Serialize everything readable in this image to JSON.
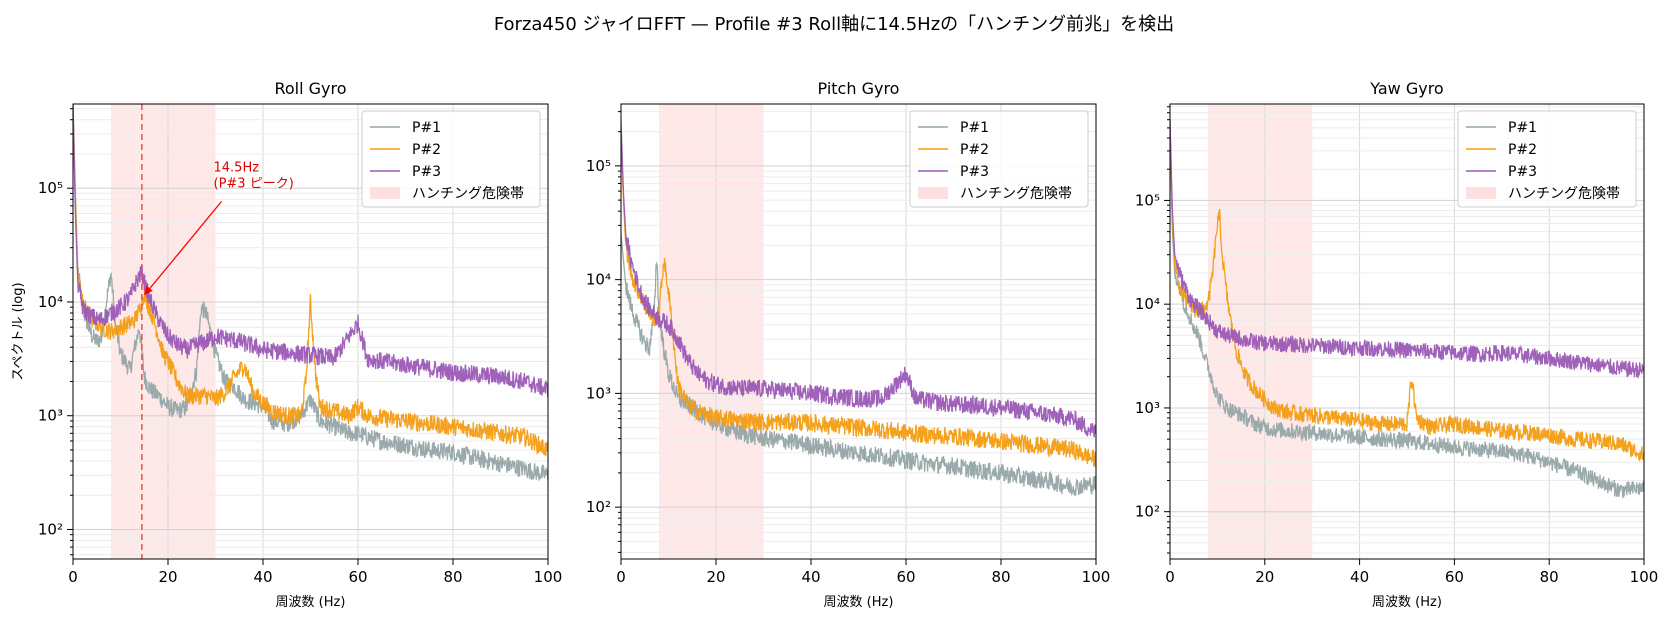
{
  "figure": {
    "title": "Forza450 ジャイロFFT — Profile #3 Roll軸に14.5Hzの「ハンチング前兆」を検出"
  },
  "colors": {
    "P#1": "#95a5a6",
    "P#2": "#f39c12",
    "P#3": "#9b59b6",
    "band": "#ffcccc",
    "marker": "#e74c3c",
    "annotation": "#e00000"
  },
  "chart_data": [
    {
      "type": "line",
      "title": "Roll Gyro",
      "xlabel": "周波数 (Hz)",
      "ylabel": "スペクトル (log)",
      "xlim": [
        0,
        100
      ],
      "ylim": [
        55,
        550000
      ],
      "yscale": "log",
      "x_ticks": [
        0,
        20,
        40,
        60,
        80,
        100
      ],
      "y_ticks": [
        100,
        1000,
        10000,
        100000
      ],
      "y_tick_labels": [
        "10²",
        "10³",
        "10⁴",
        "10⁵"
      ],
      "grid": true,
      "legend": "upper-right",
      "legend_entries": [
        "P#1",
        "P#2",
        "P#3",
        "ハンチング危険帯"
      ],
      "band": {
        "label": "ハンチング危険帯",
        "x": [
          8,
          30
        ]
      },
      "vline": 14.5,
      "annotation": {
        "lines": [
          "14.5Hz",
          "(P#3 ピーク)"
        ],
        "xy": [
          14.5,
          11000
        ],
        "text_xy": [
          30,
          110000
        ]
      },
      "series": [
        {
          "name": "P#1",
          "x": [
            0,
            0.5,
            1,
            2,
            3,
            4,
            5,
            6,
            7,
            8,
            9,
            10,
            11,
            12,
            13,
            14,
            15,
            16,
            17,
            18,
            20,
            22,
            24,
            26,
            27,
            28,
            30,
            32,
            34,
            36,
            38,
            40,
            42,
            45,
            48,
            50,
            52,
            55,
            58,
            60,
            62,
            65,
            70,
            75,
            80,
            85,
            90,
            95,
            100
          ],
          "y": [
            600000,
            90000,
            20000,
            9000,
            6500,
            5000,
            4500,
            4800,
            10000,
            18000,
            6000,
            3500,
            3000,
            2500,
            4000,
            6000,
            2200,
            1800,
            1600,
            1500,
            1200,
            1100,
            1200,
            2500,
            9000,
            8000,
            3500,
            2000,
            1800,
            1400,
            1300,
            1200,
            900,
            850,
            1000,
            1400,
            900,
            800,
            700,
            700,
            650,
            600,
            550,
            500,
            480,
            420,
            380,
            340,
            300
          ]
        },
        {
          "name": "P#2",
          "x": [
            0,
            0.5,
            1,
            2,
            3,
            4,
            5,
            6,
            8,
            10,
            12,
            13,
            14,
            15,
            16,
            17,
            18,
            19,
            20,
            22,
            24,
            26,
            28,
            30,
            32,
            34,
            36,
            38,
            40,
            42,
            45,
            48,
            49,
            50,
            51,
            52,
            55,
            58,
            60,
            62,
            65,
            70,
            75,
            80,
            85,
            90,
            95,
            100
          ],
          "y": [
            500000,
            80000,
            18000,
            10000,
            8000,
            7000,
            6500,
            6000,
            5500,
            6000,
            6500,
            7000,
            8500,
            12000,
            9000,
            7000,
            5000,
            3500,
            3000,
            2000,
            1500,
            1500,
            1500,
            1400,
            1600,
            2200,
            2800,
            1600,
            1300,
            1100,
            1000,
            1000,
            2000,
            10000,
            2500,
            1200,
            1100,
            1000,
            1200,
            1000,
            950,
            900,
            850,
            800,
            750,
            700,
            650,
            500
          ]
        },
        {
          "name": "P#3",
          "x": [
            0,
            0.5,
            1,
            2,
            3,
            4,
            5,
            6,
            8,
            10,
            12,
            13,
            14,
            14.5,
            15,
            16,
            18,
            20,
            22,
            24,
            26,
            28,
            30,
            35,
            40,
            45,
            50,
            55,
            60,
            62,
            65,
            70,
            75,
            80,
            85,
            90,
            95,
            100
          ],
          "y": [
            550000,
            60000,
            15000,
            9000,
            8000,
            7500,
            7000,
            7000,
            8000,
            9000,
            11000,
            14000,
            17000,
            18000,
            15000,
            11000,
            7000,
            5000,
            4200,
            3800,
            4200,
            4500,
            5000,
            4500,
            3800,
            3600,
            3400,
            3200,
            6500,
            3200,
            3000,
            2800,
            2600,
            2400,
            2300,
            2200,
            2000,
            1700
          ]
        }
      ]
    },
    {
      "type": "line",
      "title": "Pitch Gyro",
      "xlabel": "周波数 (Hz)",
      "ylabel": "",
      "xlim": [
        0,
        100
      ],
      "ylim": [
        35,
        350000
      ],
      "yscale": "log",
      "x_ticks": [
        0,
        20,
        40,
        60,
        80,
        100
      ],
      "y_ticks": [
        100,
        1000,
        10000,
        100000
      ],
      "y_tick_labels": [
        "10²",
        "10³",
        "10⁴",
        "10⁵"
      ],
      "grid": true,
      "legend": "upper-right",
      "legend_entries": [
        "P#1",
        "P#2",
        "P#3",
        "ハンチング危険帯"
      ],
      "band": {
        "label": "ハンチング危険帯",
        "x": [
          8,
          30
        ]
      },
      "series": [
        {
          "name": "P#1",
          "x": [
            0,
            0.5,
            1,
            2,
            3,
            4,
            5,
            6,
            7,
            7.5,
            8,
            9,
            10,
            12,
            14,
            16,
            18,
            20,
            22,
            25,
            30,
            35,
            40,
            45,
            50,
            55,
            60,
            65,
            70,
            75,
            80,
            85,
            90,
            95,
            100
          ],
          "y": [
            25000,
            15000,
            9000,
            6000,
            4500,
            3500,
            2800,
            2500,
            5000,
            17000,
            5000,
            2500,
            1500,
            900,
            800,
            700,
            600,
            550,
            500,
            450,
            400,
            380,
            350,
            320,
            300,
            280,
            260,
            240,
            230,
            210,
            200,
            180,
            170,
            150,
            160
          ]
        },
        {
          "name": "P#2",
          "x": [
            0,
            0.5,
            1,
            2,
            3,
            4,
            5,
            6,
            7,
            8,
            9,
            10,
            11,
            12,
            14,
            16,
            18,
            20,
            22,
            25,
            30,
            35,
            40,
            45,
            50,
            55,
            60,
            65,
            70,
            75,
            80,
            85,
            90,
            95,
            100
          ],
          "y": [
            200000,
            50000,
            20000,
            12000,
            9000,
            7500,
            6000,
            5000,
            4500,
            5000,
            15000,
            8000,
            3000,
            1200,
            800,
            700,
            650,
            600,
            600,
            580,
            560,
            560,
            550,
            520,
            500,
            480,
            450,
            430,
            420,
            400,
            380,
            360,
            340,
            320,
            260
          ]
        },
        {
          "name": "P#3",
          "x": [
            0,
            0.5,
            1,
            2,
            3,
            4,
            5,
            6,
            8,
            10,
            12,
            14,
            16,
            18,
            20,
            22,
            25,
            30,
            35,
            40,
            45,
            50,
            55,
            60,
            62,
            65,
            70,
            75,
            80,
            85,
            90,
            95,
            100
          ],
          "y": [
            250000,
            60000,
            25000,
            15000,
            11000,
            8000,
            6500,
            5500,
            4500,
            4000,
            3000,
            2000,
            1500,
            1300,
            1200,
            1150,
            1100,
            1100,
            1050,
            1000,
            950,
            900,
            900,
            1500,
            900,
            850,
            800,
            780,
            750,
            700,
            650,
            600,
            450
          ]
        }
      ]
    },
    {
      "type": "line",
      "title": "Yaw Gyro",
      "xlabel": "周波数 (Hz)",
      "ylabel": "",
      "xlim": [
        0,
        100
      ],
      "ylim": [
        35,
        850000
      ],
      "yscale": "log",
      "x_ticks": [
        0,
        20,
        40,
        60,
        80,
        100
      ],
      "y_ticks": [
        100,
        1000,
        10000,
        100000
      ],
      "y_tick_labels": [
        "10²",
        "10³",
        "10⁴",
        "10⁵"
      ],
      "grid": true,
      "legend": "upper-right",
      "legend_entries": [
        "P#1",
        "P#2",
        "P#3",
        "ハンチング危険帯"
      ],
      "band": {
        "label": "ハンチング危険帯",
        "x": [
          8,
          30
        ]
      },
      "series": [
        {
          "name": "P#1",
          "x": [
            0,
            0.5,
            1,
            2,
            3,
            4,
            5,
            6,
            7,
            8,
            9,
            10,
            12,
            14,
            16,
            18,
            20,
            22,
            25,
            30,
            35,
            40,
            45,
            50,
            55,
            60,
            65,
            70,
            75,
            80,
            85,
            90,
            95,
            100
          ],
          "y": [
            500000,
            50000,
            20000,
            15000,
            10000,
            8000,
            6000,
            5000,
            3500,
            2500,
            1800,
            1300,
            1000,
            900,
            800,
            700,
            650,
            620,
            600,
            580,
            550,
            520,
            500,
            480,
            450,
            420,
            400,
            380,
            350,
            300,
            250,
            200,
            160,
            170
          ]
        },
        {
          "name": "P#2",
          "x": [
            0,
            0.5,
            1,
            2,
            3,
            4,
            5,
            6,
            7,
            8,
            9,
            10,
            10.5,
            11,
            12,
            13,
            14,
            16,
            18,
            20,
            22,
            25,
            30,
            35,
            40,
            45,
            50,
            51,
            52,
            55,
            60,
            65,
            70,
            75,
            80,
            85,
            90,
            95,
            100
          ],
          "y": [
            600000,
            60000,
            25000,
            15000,
            12000,
            10000,
            9000,
            8500,
            9000,
            10000,
            20000,
            60000,
            70000,
            30000,
            12000,
            6000,
            3500,
            2000,
            1500,
            1200,
            1000,
            900,
            850,
            800,
            750,
            700,
            700,
            2000,
            800,
            650,
            700,
            650,
            600,
            580,
            550,
            500,
            480,
            450,
            350
          ]
        },
        {
          "name": "P#3",
          "x": [
            0,
            0.5,
            1,
            2,
            3,
            4,
            5,
            6,
            7,
            8,
            10,
            12,
            14,
            16,
            18,
            20,
            25,
            30,
            35,
            40,
            45,
            50,
            55,
            60,
            65,
            70,
            75,
            80,
            85,
            90,
            95,
            100
          ],
          "y": [
            600000,
            80000,
            30000,
            20000,
            15000,
            12000,
            10000,
            9000,
            8000,
            7000,
            5500,
            5000,
            4800,
            4500,
            4300,
            4200,
            4100,
            4000,
            3900,
            3800,
            3700,
            3600,
            3500,
            3400,
            3300,
            3400,
            3200,
            3000,
            2800,
            2600,
            2400,
            2300
          ]
        }
      ]
    }
  ]
}
